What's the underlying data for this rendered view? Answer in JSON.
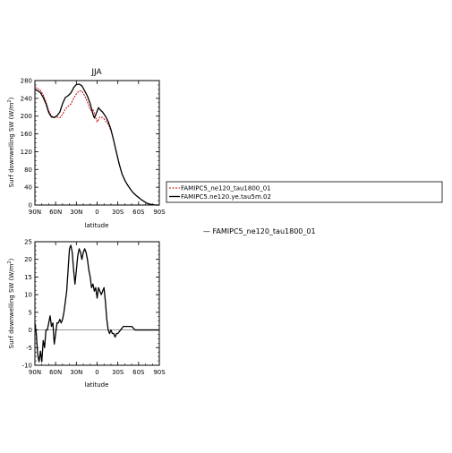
{
  "chart_data": [
    {
      "type": "line",
      "title": "JJA",
      "xlabel": "latitude",
      "ylabel": "Surf downwelling SW (W/m",
      "ylabel_sup": "2",
      "ylabel_close": ")",
      "xlim": [
        90,
        -90
      ],
      "ylim": [
        0,
        280
      ],
      "xticks": [
        90,
        60,
        30,
        0,
        -30,
        -60,
        -90
      ],
      "xtick_labels": [
        "90N",
        "60N",
        "30N",
        "0",
        "30S",
        "60S",
        "90S"
      ],
      "yticks": [
        0,
        40,
        80,
        120,
        160,
        200,
        240,
        280
      ],
      "legend_placement": "right",
      "series": [
        {
          "name": "FAMIPC5_ne120_tau1800_01",
          "color": "#cc0000",
          "style": "dashed",
          "x": [
            90,
            86,
            82,
            78,
            74,
            70,
            66,
            62,
            58,
            54,
            50,
            46,
            42,
            38,
            34,
            30,
            26,
            22,
            18,
            14,
            10,
            8,
            6,
            4,
            2,
            0,
            -2,
            -4,
            -8,
            -12,
            -16,
            -20,
            -24,
            -28,
            -32,
            -36,
            -40,
            -44,
            -48,
            -52,
            -56,
            -60,
            -64,
            -68,
            -72,
            -76,
            -80,
            -84,
            -88,
            -90
          ],
          "y": [
            265,
            262,
            258,
            248,
            232,
            212,
            200,
            197,
            198,
            196,
            204,
            216,
            222,
            227,
            240,
            250,
            257,
            256,
            246,
            232,
            215,
            212,
            214,
            207,
            196,
            187,
            192,
            198,
            197,
            190,
            182,
            168,
            145,
            118,
            92,
            70,
            56,
            45,
            36,
            28,
            22,
            17,
            12,
            8,
            4,
            2,
            1,
            0,
            0,
            0
          ]
        },
        {
          "name": "FAMIPC5.ne120.ye.tau5m.02",
          "color": "#000000",
          "style": "solid",
          "x": [
            90,
            86,
            82,
            78,
            74,
            70,
            66,
            62,
            58,
            54,
            50,
            46,
            42,
            38,
            34,
            30,
            26,
            22,
            18,
            14,
            10,
            8,
            6,
            4,
            2,
            0,
            -2,
            -4,
            -8,
            -12,
            -16,
            -20,
            -24,
            -28,
            -32,
            -36,
            -40,
            -44,
            -48,
            -52,
            -56,
            -60,
            -64,
            -68,
            -72,
            -76,
            -80,
            -84,
            -88,
            -90
          ],
          "y": [
            260,
            257,
            253,
            242,
            228,
            208,
            198,
            197,
            201,
            209,
            228,
            242,
            246,
            252,
            264,
            271,
            272,
            268,
            257,
            245,
            228,
            216,
            204,
            196,
            203,
            211,
            219,
            215,
            209,
            200,
            188,
            170,
            145,
            118,
            92,
            70,
            56,
            45,
            36,
            28,
            22,
            17,
            12,
            8,
            4,
            2,
            1,
            0,
            0,
            0
          ]
        }
      ]
    },
    {
      "type": "line",
      "title": "",
      "xlabel": "latitude",
      "ylabel": "Surf downwelling SW (W/m",
      "ylabel_sup": "2",
      "ylabel_close": ")",
      "xlim": [
        90,
        -90
      ],
      "ylim": [
        -10,
        25
      ],
      "xticks": [
        90,
        60,
        30,
        0,
        -30,
        -60,
        -90
      ],
      "xtick_labels": [
        "90N",
        "60N",
        "30N",
        "0",
        "30S",
        "60S",
        "90S"
      ],
      "yticks": [
        -10,
        -5,
        0,
        5,
        10,
        15,
        20,
        25
      ],
      "legend_placement": "right",
      "series": [
        {
          "name": "FAMIPC5_ne120_tau1800_01",
          "legend_text": "— FAMIPC5_ne120_tau1800_01",
          "color": "#000000",
          "style": "solid",
          "x": [
            90,
            88,
            86,
            84,
            82,
            80,
            78,
            76,
            74,
            72,
            70,
            68,
            66,
            64,
            62,
            60,
            58,
            56,
            54,
            52,
            50,
            48,
            46,
            44,
            42,
            40,
            38,
            36,
            34,
            32,
            30,
            28,
            26,
            24,
            22,
            20,
            18,
            16,
            14,
            12,
            10,
            8,
            6,
            4,
            2,
            0,
            -2,
            -4,
            -6,
            -8,
            -10,
            -12,
            -14,
            -16,
            -18,
            -20,
            -22,
            -24,
            -26,
            -28,
            -30,
            -34,
            -38,
            -42,
            -46,
            -50,
            -55,
            -60,
            -70,
            -80,
            -90
          ],
          "y": [
            2,
            -1,
            -7,
            -9,
            -6,
            -9,
            -3,
            -5,
            0,
            0,
            2,
            4,
            1,
            2,
            -4,
            -1,
            2,
            2,
            3,
            2,
            3,
            5,
            8,
            11,
            17,
            23,
            24,
            22,
            17,
            13,
            17,
            21,
            23,
            22,
            20,
            22,
            23,
            22,
            20,
            17,
            15,
            12,
            13,
            11,
            12,
            9,
            12,
            11,
            10,
            11,
            12,
            8,
            3,
            0,
            -1,
            0,
            -1,
            -1,
            -2,
            -1,
            -1,
            0,
            1,
            1,
            1,
            1,
            0,
            0,
            0,
            0,
            0
          ]
        }
      ]
    }
  ],
  "legend_top": {
    "entries": [
      {
        "label": "FAMIPC5_ne120_tau1800_01",
        "color": "#cc0000",
        "style": "dashed"
      },
      {
        "label": "FAMIPC5.ne120.ye.tau5m.02",
        "color": "#000000",
        "style": "solid"
      }
    ]
  },
  "legend_bottom": {
    "text": "— FAMIPC5_ne120_tau1800_01"
  }
}
